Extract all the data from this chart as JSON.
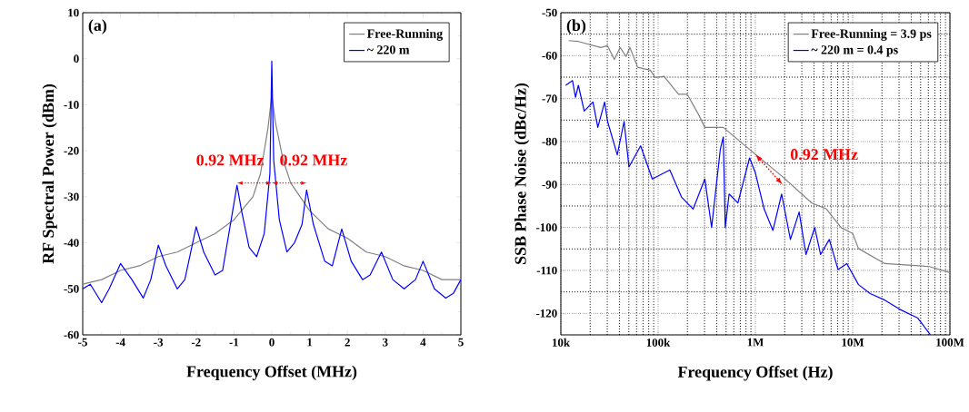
{
  "chart_data": [
    {
      "type": "line",
      "title": "(a)",
      "xlabel": "Frequency Offset (MHz)",
      "ylabel": "RF Spectral Power (dBm)",
      "xlim": [
        -5,
        5
      ],
      "ylim": [
        -60,
        10
      ],
      "xticks": [
        -5,
        -4,
        -3,
        -2,
        -1,
        0,
        1,
        2,
        3,
        4,
        5
      ],
      "yticks": [
        -60,
        -50,
        -40,
        -30,
        -20,
        -10,
        0,
        10
      ],
      "legend": "top right",
      "annotations": [
        {
          "text": "0.92 MHz",
          "x": -0.46,
          "y": -27
        },
        {
          "text": "0.92 MHz",
          "x": 0.46,
          "y": -27
        }
      ],
      "series": [
        {
          "name": "Free-Running",
          "color": "#808080",
          "x": [
            -5,
            -4.5,
            -4,
            -3.5,
            -3,
            -2.5,
            -2,
            -1.5,
            -1,
            -0.5,
            -0.3,
            -0.1,
            0,
            0.1,
            0.3,
            0.5,
            1,
            1.5,
            2,
            2.5,
            3,
            3.5,
            4,
            4.5,
            5
          ],
          "values": [
            -49,
            -48,
            -46,
            -45,
            -43,
            -42,
            -40,
            -38,
            -35,
            -30,
            -25,
            -15,
            -8,
            -14,
            -22,
            -27,
            -33,
            -37,
            -39,
            -42,
            -43,
            -45,
            -46,
            -48,
            -48
          ]
        },
        {
          "name": "~ 220 m",
          "color": "#0000ff",
          "x": [
            -5,
            -4.8,
            -4.5,
            -4.3,
            -4,
            -3.7,
            -3.4,
            -3.2,
            -3,
            -2.8,
            -2.5,
            -2.3,
            -2,
            -1.8,
            -1.5,
            -1.3,
            -0.92,
            -0.8,
            -0.6,
            -0.4,
            -0.2,
            -0.05,
            0,
            0.05,
            0.2,
            0.4,
            0.6,
            0.8,
            0.92,
            1.1,
            1.4,
            1.6,
            1.85,
            2.1,
            2.4,
            2.6,
            2.9,
            3.2,
            3.5,
            3.8,
            4,
            4.3,
            4.6,
            4.8,
            5
          ],
          "values": [
            -50,
            -49,
            -53,
            -50,
            -44.5,
            -48,
            -52,
            -48,
            -40.5,
            -45,
            -50,
            -48,
            -36.5,
            -42,
            -47,
            -46,
            -27.5,
            -33,
            -41,
            -43,
            -38,
            -25,
            -0.5,
            -22,
            -35,
            -42,
            -40,
            -36,
            -28.5,
            -36,
            -44,
            -45,
            -37,
            -44,
            -48,
            -47,
            -42,
            -48,
            -50,
            -48,
            -44,
            -50,
            -52,
            -51,
            -48
          ]
        }
      ]
    },
    {
      "type": "line",
      "title": "(b)",
      "xlabel": "Frequency Offset (Hz)",
      "ylabel": "SSB Phase Noise (dBc/Hz)",
      "log": "x",
      "grid": true,
      "xlim": [
        10000,
        100000000
      ],
      "ylim": [
        -125,
        -50
      ],
      "xticks": [
        {
          "value": 10000,
          "label": "10k"
        },
        {
          "value": 100000,
          "label": "100k"
        },
        {
          "value": 1000000,
          "label": "1M"
        },
        {
          "value": 10000000,
          "label": "10M"
        },
        {
          "value": 100000000,
          "label": "100M"
        }
      ],
      "yticks": [
        -120,
        -110,
        -100,
        -90,
        -80,
        -70,
        -60,
        -50
      ],
      "legend": "top right",
      "annotations": [
        {
          "text": "0.92 MHz",
          "x": 1000000,
          "y": -83
        }
      ],
      "series": [
        {
          "name": "Free-Running = 3.9 ps",
          "color": "#808080",
          "x": [
            12020,
            15140,
            25700,
            30200,
            35480,
            40740,
            46770,
            51290,
            61660,
            83180,
            93330,
            114800,
            162200,
            199500,
            263000,
            302000,
            467700,
            933300,
            1862000,
            3802000,
            5370000,
            7586000,
            10000000,
            11480000,
            21380000,
            61660000,
            100000000
          ],
          "values": [
            -56.5,
            -56.7,
            -58.1,
            -57.7,
            -60.9,
            -58.1,
            -60.2,
            -58.1,
            -62.7,
            -63.4,
            -65.1,
            -64.8,
            -69,
            -69,
            -73.9,
            -76.7,
            -76.7,
            -82.4,
            -88,
            -94.3,
            -95.7,
            -100,
            -101.4,
            -104.9,
            -108.4,
            -109.1,
            -110.5
          ]
        },
        {
          "name": "~ 220 m = 0.4 ps",
          "color": "#0000ff",
          "x": [
            11220,
            13180,
            14130,
            15140,
            17380,
            21380,
            23990,
            28180,
            30200,
            38020,
            44670,
            50120,
            66070,
            87100,
            131800,
            173800,
            229100,
            302000,
            354800,
            436500,
            467700,
            489800,
            537000,
            660700,
            871000,
            1000000,
            1230000,
            1514000,
            1862000,
            2291000,
            2818000,
            3311000,
            4074000,
            4677000,
            5754000,
            7079000,
            8710000,
            11480000,
            15140000,
            21380000,
            30200000,
            46770000,
            63100000
          ],
          "values": [
            -66.9,
            -65.8,
            -69.7,
            -66.9,
            -72.9,
            -70.8,
            -76.7,
            -70.8,
            -75.3,
            -83.1,
            -75.3,
            -85.9,
            -81,
            -88.7,
            -86.6,
            -92.9,
            -95.7,
            -88.7,
            -100,
            -81.7,
            -78.9,
            -100,
            -92.2,
            -94.3,
            -83.8,
            -87.3,
            -95.7,
            -100.7,
            -92.2,
            -102.8,
            -96.4,
            -106.3,
            -100,
            -106.3,
            -102.8,
            -109.8,
            -108.4,
            -113.3,
            -115.4,
            -116.9,
            -119,
            -121.1,
            -125
          ]
        }
      ]
    }
  ]
}
